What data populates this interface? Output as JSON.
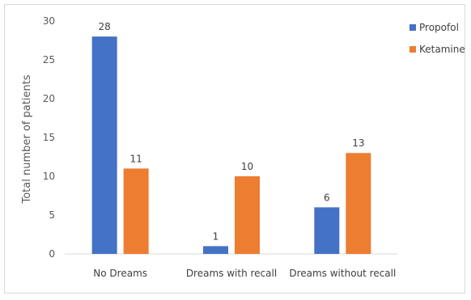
{
  "chart_data": {
    "type": "bar",
    "categories": [
      "No Dreams",
      "Dreams with recall",
      "Dreams without recall"
    ],
    "series": [
      {
        "name": "Propofol",
        "values": [
          28,
          1,
          6
        ],
        "color": "#4472c4"
      },
      {
        "name": "Ketamine",
        "values": [
          11,
          10,
          13
        ],
        "color": "#ed7d31"
      }
    ],
    "ylabel": "Total number of patients",
    "xlabel": "",
    "ylim": [
      0,
      30
    ],
    "yticks": [
      0,
      5,
      10,
      15,
      20,
      25,
      30
    ],
    "grid": false,
    "legend": "top-right",
    "data_labels": true
  }
}
